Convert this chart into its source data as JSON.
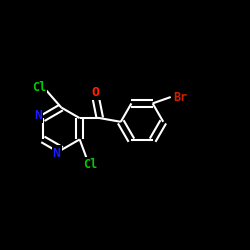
{
  "background_color": "#000000",
  "bond_color": "#ffffff",
  "bond_width": 1.5,
  "atom_colors": {
    "C": "#ffffff",
    "N": "#1a1aff",
    "O": "#ff2200",
    "Cl": "#00cc00",
    "Br": "#cc2200"
  },
  "font_size": 8.5,
  "fig_size": [
    2.5,
    2.5
  ],
  "dpi": 100,
  "xlim": [
    0.0,
    1.0
  ],
  "ylim": [
    0.1,
    0.9
  ]
}
